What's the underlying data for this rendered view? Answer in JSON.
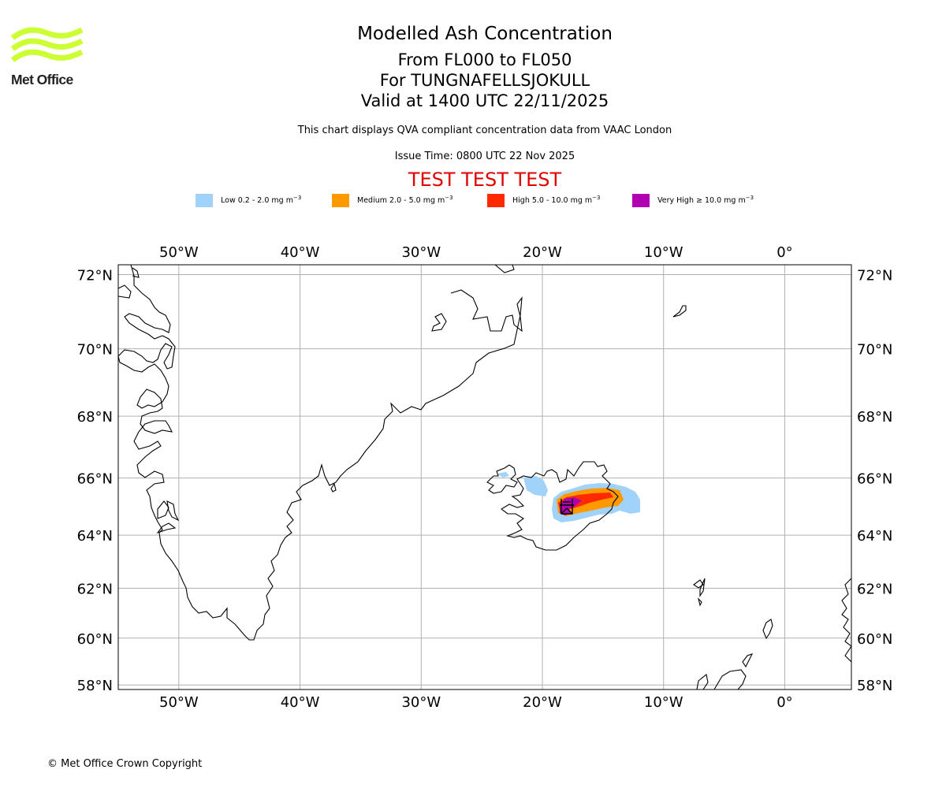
{
  "logo": {
    "text": "Met Office",
    "color": "#ccff33"
  },
  "title": {
    "main": "Modelled Ash Concentration",
    "range": "From FL000 to FL050",
    "volcano": "For TUNGNAFELLSJOKULL",
    "valid": "Valid at 1400 UTC 22/11/2025"
  },
  "subtitle": {
    "description": "This chart displays QVA compliant concentration data from VAAC London",
    "issue_time": "Issue Time: 0800 UTC 22 Nov 2025"
  },
  "test_banner": {
    "text": "TEST TEST TEST",
    "color": "#e00000"
  },
  "legend": [
    {
      "label": "Low 0.2 - 2.0 mg m",
      "unit_exp": "−3",
      "color": "#a0d2fa"
    },
    {
      "label": "Medium 2.0 - 5.0 mg m",
      "unit_exp": "−3",
      "color": "#ff9900"
    },
    {
      "label": "High 5.0 - 10.0 mg m",
      "unit_exp": "−3",
      "color": "#ff2a00"
    },
    {
      "label": "Very High  ≥  10.0 mg m",
      "unit_exp": "−3",
      "color": "#b000b0"
    }
  ],
  "map": {
    "lon_range": [
      -55,
      5.5
    ],
    "lat_range": [
      57.8,
      72.25
    ],
    "lon_ticks": [
      {
        "value": -50,
        "label": "50°W"
      },
      {
        "value": -40,
        "label": "40°W"
      },
      {
        "value": -30,
        "label": "30°W"
      },
      {
        "value": -20,
        "label": "20°W"
      },
      {
        "value": -10,
        "label": "10°W"
      },
      {
        "value": 0,
        "label": "0°"
      }
    ],
    "lat_ticks": [
      {
        "value": 72,
        "label": "72°N"
      },
      {
        "value": 70,
        "label": "70°N"
      },
      {
        "value": 68,
        "label": "68°N"
      },
      {
        "value": 66,
        "label": "66°N"
      },
      {
        "value": 64,
        "label": "64°N"
      },
      {
        "value": 62,
        "label": "62°N"
      },
      {
        "value": 60,
        "label": "60°N"
      },
      {
        "value": 58,
        "label": "58°N"
      }
    ],
    "grid_color": "#b0b0b0",
    "coast_color": "#000000"
  },
  "copyright": "© Met Office Crown Copyright"
}
